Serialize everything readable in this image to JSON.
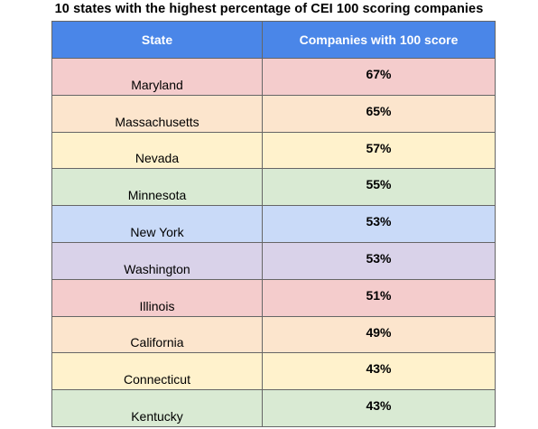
{
  "chart_data": {
    "type": "table",
    "title": "10 states with the highest percentage of CEI 100 scoring companies",
    "columns": [
      "State",
      "Companies with 100 score"
    ],
    "rows": [
      {
        "state": "Maryland",
        "score": "67%",
        "value": 67,
        "color": "#f4cccc"
      },
      {
        "state": "Massachusetts",
        "score": "65%",
        "value": 65,
        "color": "#fce5cd"
      },
      {
        "state": "Nevada",
        "score": "57%",
        "value": 57,
        "color": "#fff2cc"
      },
      {
        "state": "Minnesota",
        "score": "55%",
        "value": 55,
        "color": "#d9ead3"
      },
      {
        "state": "New York",
        "score": "53%",
        "value": 53,
        "color": "#c9daf8"
      },
      {
        "state": "Washington",
        "score": "53%",
        "value": 53,
        "color": "#d9d2e9"
      },
      {
        "state": "Illinois",
        "score": "51%",
        "value": 51,
        "color": "#f4cccc"
      },
      {
        "state": "California",
        "score": "49%",
        "value": 49,
        "color": "#fce5cd"
      },
      {
        "state": "Connecticut",
        "score": "43%",
        "value": 43,
        "color": "#fff2cc"
      },
      {
        "state": "Kentucky",
        "score": "43%",
        "value": 43,
        "color": "#d9ead3"
      }
    ],
    "header_color": "#4a86e8"
  }
}
